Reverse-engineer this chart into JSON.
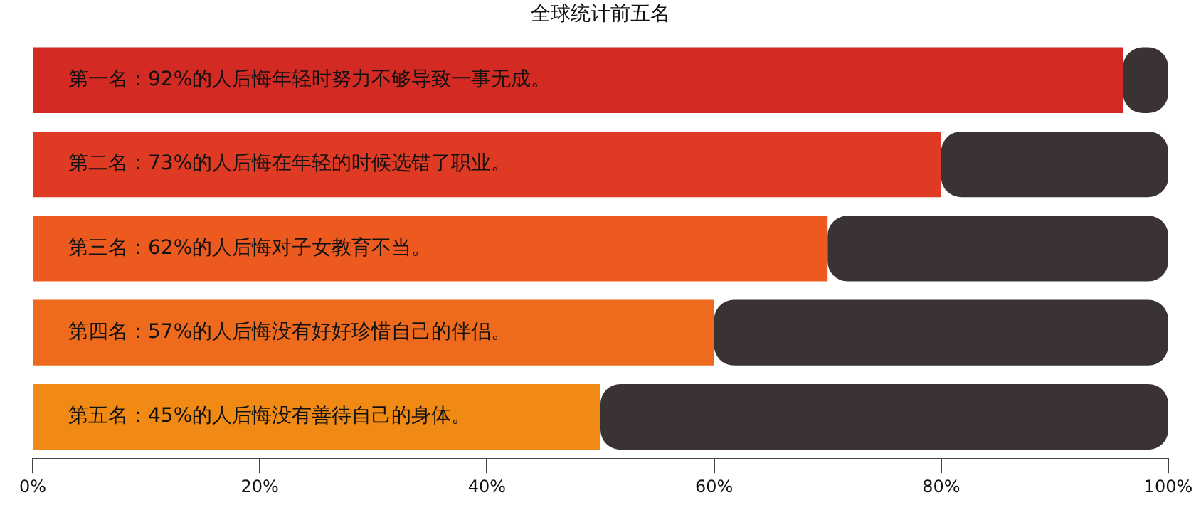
{
  "chart_data": {
    "type": "bar",
    "orientation": "horizontal",
    "title": "全球统计前五名",
    "categories": [
      "第一名：92%的人后悔年轻时努力不够导致一事无成。",
      "第二名：73%的人后悔在年轻的时候选错了职业。",
      "第三名：62%的人后悔对子女教育不当。",
      "第四名：57%的人后悔没有好好珍惜自己的伴侣。",
      "第五名：45%的人后悔没有善待自己的身体。"
    ],
    "series": [
      {
        "values": [
          96,
          80,
          70,
          60,
          50
        ],
        "colors": [
          "#d42a24",
          "#de3a24",
          "#ec5a20",
          "#ee6a1c",
          "#f08a14"
        ]
      },
      {
        "color": "#3a3233",
        "values": [
          4,
          20,
          30,
          40,
          50
        ]
      }
    ],
    "stacked": true,
    "xlim": [
      0,
      100
    ],
    "xticks": [
      {
        "value": 0,
        "label": "0%"
      },
      {
        "value": 20,
        "label": "20%"
      },
      {
        "value": 40,
        "label": "40%"
      },
      {
        "value": 60,
        "label": "60%"
      },
      {
        "value": 80,
        "label": "80%"
      },
      {
        "value": 100,
        "label": "100%"
      }
    ],
    "grid": false,
    "legend": false
  }
}
